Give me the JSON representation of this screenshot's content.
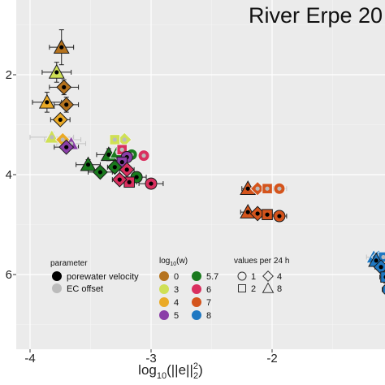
{
  "chart_data": {
    "type": "scatter",
    "title": "River Erpe 20",
    "xlabel_parts": {
      "prefix": "log",
      "prefix_sub": "10",
      "body": "(||e||",
      "sup": "2",
      "sub": "2",
      "suffix": ")"
    },
    "ylabel": "",
    "xlim": [
      -4.1,
      -1.0
    ],
    "ylim": [
      7.3,
      0.8
    ],
    "x_ticks": [
      -4,
      -3,
      -2
    ],
    "x_tick_labels": [
      "-4",
      "-3",
      "-2"
    ],
    "y_ticks": [
      2,
      4,
      6
    ],
    "y_tick_labels": [
      "2",
      "4",
      "6"
    ],
    "grid": true,
    "background": "#ebebeb",
    "legend_placement": "bottom-left inside plot",
    "legend": {
      "parameter": {
        "title": "parameter",
        "items": [
          {
            "label": "porewater velocity",
            "color": "#000000"
          },
          {
            "label": "EC offset",
            "color": "#bbbbbb"
          }
        ]
      },
      "log_w": {
        "title_parts": {
          "prefix": "log",
          "sub": "10",
          "suffix": "(w)"
        },
        "items": [
          {
            "label": "0",
            "color": "#b5731e"
          },
          {
            "label": "3",
            "color": "#cfe055"
          },
          {
            "label": "4",
            "color": "#eaaa26"
          },
          {
            "label": "5",
            "color": "#8b3fa8"
          },
          {
            "label": "5.7",
            "color": "#1a7a1e"
          },
          {
            "label": "6",
            "color": "#d9305f"
          },
          {
            "label": "7",
            "color": "#d4541c"
          },
          {
            "label": "8",
            "color": "#1f78c2"
          }
        ]
      },
      "values_per_24h": {
        "title": "values per 24 h",
        "items": [
          {
            "label": "1",
            "shape": "circle"
          },
          {
            "label": "2",
            "shape": "square"
          },
          {
            "label": "4",
            "shape": "diamond"
          },
          {
            "label": "8",
            "shape": "triangle"
          }
        ]
      }
    },
    "points": [
      {
        "x": -3.74,
        "y": 1.45,
        "w": "0",
        "shape": "triangle",
        "param": "porewater velocity",
        "xerr": 0.1,
        "yerr": 0.35
      },
      {
        "x": -3.78,
        "y": 1.95,
        "w": "3",
        "shape": "triangle",
        "param": "porewater velocity",
        "xerr": 0.12,
        "yerr": 0.2
      },
      {
        "x": -3.72,
        "y": 2.25,
        "w": "0",
        "shape": "diamond",
        "param": "porewater velocity",
        "xerr": 0.12,
        "yerr": 0.15
      },
      {
        "x": -3.86,
        "y": 2.55,
        "w": "4",
        "shape": "triangle",
        "param": "porewater velocity",
        "xerr": 0.12,
        "yerr": 0.2
      },
      {
        "x": -3.7,
        "y": 2.6,
        "w": "0",
        "shape": "diamond",
        "param": "porewater velocity",
        "xerr": 0.1,
        "yerr": 0.15
      },
      {
        "x": -3.75,
        "y": 2.9,
        "w": "4",
        "shape": "diamond",
        "param": "porewater velocity",
        "xerr": 0.08,
        "yerr": 0.1
      },
      {
        "x": -3.82,
        "y": 3.25,
        "w": "3",
        "shape": "triangle",
        "param": "EC offset",
        "xerr": 0.18,
        "yerr": 0.1
      },
      {
        "x": -3.73,
        "y": 3.3,
        "w": "4",
        "shape": "diamond",
        "param": "EC offset",
        "xerr": 0.15,
        "yerr": 0.1
      },
      {
        "x": -3.66,
        "y": 3.38,
        "w": "5",
        "shape": "triangle",
        "param": "EC offset",
        "xerr": 0.12,
        "yerr": 0.08
      },
      {
        "x": -3.7,
        "y": 3.45,
        "w": "5",
        "shape": "diamond",
        "param": "porewater velocity",
        "xerr": 0.1,
        "yerr": 0.08
      },
      {
        "x": -3.35,
        "y": 3.6,
        "w": "5.7",
        "shape": "triangle",
        "param": "porewater velocity",
        "xerr": 0.1,
        "yerr": 0.12
      },
      {
        "x": -3.28,
        "y": 3.55,
        "w": "5.7",
        "shape": "triangle",
        "param": "EC offset",
        "xerr": 0.06,
        "yerr": 0.1
      },
      {
        "x": -3.22,
        "y": 3.3,
        "w": "3",
        "shape": "diamond",
        "param": "EC offset",
        "xerr": 0.04,
        "yerr": 0.1
      },
      {
        "x": -3.3,
        "y": 3.3,
        "w": "3",
        "shape": "square",
        "param": "EC offset",
        "xerr": 0.04,
        "yerr": 0.1
      },
      {
        "x": -3.24,
        "y": 3.5,
        "w": "6",
        "shape": "square",
        "param": "EC offset",
        "xerr": 0.04,
        "yerr": 0.08
      },
      {
        "x": -3.16,
        "y": 3.6,
        "w": "5.7",
        "shape": "circle",
        "param": "EC offset",
        "xerr": 0.04,
        "yerr": 0.06
      },
      {
        "x": -3.06,
        "y": 3.62,
        "w": "6",
        "shape": "circle",
        "param": "EC offset",
        "xerr": 0.04,
        "yerr": 0.06
      },
      {
        "x": -3.2,
        "y": 3.65,
        "w": "5",
        "shape": "circle",
        "param": "porewater velocity",
        "xerr": 0.04,
        "yerr": 0.06
      },
      {
        "x": -3.24,
        "y": 3.75,
        "w": "5",
        "shape": "square",
        "param": "porewater velocity",
        "xerr": 0.04,
        "yerr": 0.06
      },
      {
        "x": -3.3,
        "y": 3.85,
        "w": "5.7",
        "shape": "diamond",
        "param": "porewater velocity",
        "xerr": 0.06,
        "yerr": 0.08
      },
      {
        "x": -3.2,
        "y": 3.9,
        "w": "6",
        "shape": "diamond",
        "param": "porewater velocity",
        "xerr": 0.06,
        "yerr": 0.08
      },
      {
        "x": -3.52,
        "y": 3.8,
        "w": "5.7",
        "shape": "triangle",
        "param": "porewater velocity",
        "xerr": 0.1,
        "yerr": 0.1
      },
      {
        "x": -3.42,
        "y": 3.95,
        "w": "5.7",
        "shape": "diamond",
        "param": "porewater velocity",
        "xerr": 0.1,
        "yerr": 0.08
      },
      {
        "x": -3.12,
        "y": 4.05,
        "w": "5.7",
        "shape": "circle",
        "param": "porewater velocity",
        "xerr": 0.08,
        "yerr": 0.06
      },
      {
        "x": -3.18,
        "y": 4.15,
        "w": "6",
        "shape": "square",
        "param": "porewater velocity",
        "xerr": 0.06,
        "yerr": 0.06
      },
      {
        "x": -3.26,
        "y": 4.1,
        "w": "6",
        "shape": "diamond",
        "param": "porewater velocity",
        "xerr": 0.06,
        "yerr": 0.06
      },
      {
        "x": -3.0,
        "y": 4.18,
        "w": "6",
        "shape": "circle",
        "param": "porewater velocity",
        "xerr": 0.1,
        "yerr": 0.06
      },
      {
        "x": -2.2,
        "y": 4.28,
        "w": "7",
        "shape": "triangle",
        "param": "porewater velocity",
        "xerr": 0.05,
        "yerr": 0.06
      },
      {
        "x": -2.12,
        "y": 4.28,
        "w": "7",
        "shape": "diamond",
        "param": "EC offset",
        "xerr": 0.05,
        "yerr": 0.05
      },
      {
        "x": -2.04,
        "y": 4.28,
        "w": "7",
        "shape": "square",
        "param": "EC offset",
        "xerr": 0.05,
        "yerr": 0.05
      },
      {
        "x": -1.94,
        "y": 4.28,
        "w": "7",
        "shape": "circle",
        "param": "EC offset",
        "xerr": 0.06,
        "yerr": 0.05
      },
      {
        "x": -2.2,
        "y": 4.75,
        "w": "7",
        "shape": "triangle",
        "param": "porewater velocity",
        "xerr": 0.06,
        "yerr": 0.08
      },
      {
        "x": -2.12,
        "y": 4.78,
        "w": "7",
        "shape": "diamond",
        "param": "porewater velocity",
        "xerr": 0.06,
        "yerr": 0.08
      },
      {
        "x": -2.04,
        "y": 4.8,
        "w": "7",
        "shape": "square",
        "param": "porewater velocity",
        "xerr": 0.06,
        "yerr": 0.08
      },
      {
        "x": -1.94,
        "y": 4.83,
        "w": "7",
        "shape": "circle",
        "param": "porewater velocity",
        "xerr": 0.06,
        "yerr": 0.08
      },
      {
        "x": -1.16,
        "y": 5.65,
        "w": "8",
        "shape": "triangle",
        "param": "EC offset",
        "xerr": 0.06,
        "yerr": 0.06
      },
      {
        "x": -1.12,
        "y": 5.65,
        "w": "8",
        "shape": "diamond",
        "param": "EC offset",
        "xerr": 0.05,
        "yerr": 0.06
      },
      {
        "x": -1.08,
        "y": 5.65,
        "w": "8",
        "shape": "square",
        "param": "EC offset",
        "xerr": 0.05,
        "yerr": 0.06
      },
      {
        "x": -1.14,
        "y": 5.72,
        "w": "8",
        "shape": "triangle",
        "param": "porewater velocity",
        "xerr": 0.06,
        "yerr": 0.08
      },
      {
        "x": -1.1,
        "y": 5.85,
        "w": "8",
        "shape": "diamond",
        "param": "porewater velocity",
        "xerr": 0.05,
        "yerr": 0.1
      },
      {
        "x": -1.06,
        "y": 6.05,
        "w": "8",
        "shape": "square",
        "param": "porewater velocity",
        "xerr": 0.05,
        "yerr": 0.12
      },
      {
        "x": -1.04,
        "y": 6.3,
        "w": "8",
        "shape": "circle",
        "param": "porewater velocity",
        "xerr": 0.05,
        "yerr": 0.15
      }
    ]
  }
}
